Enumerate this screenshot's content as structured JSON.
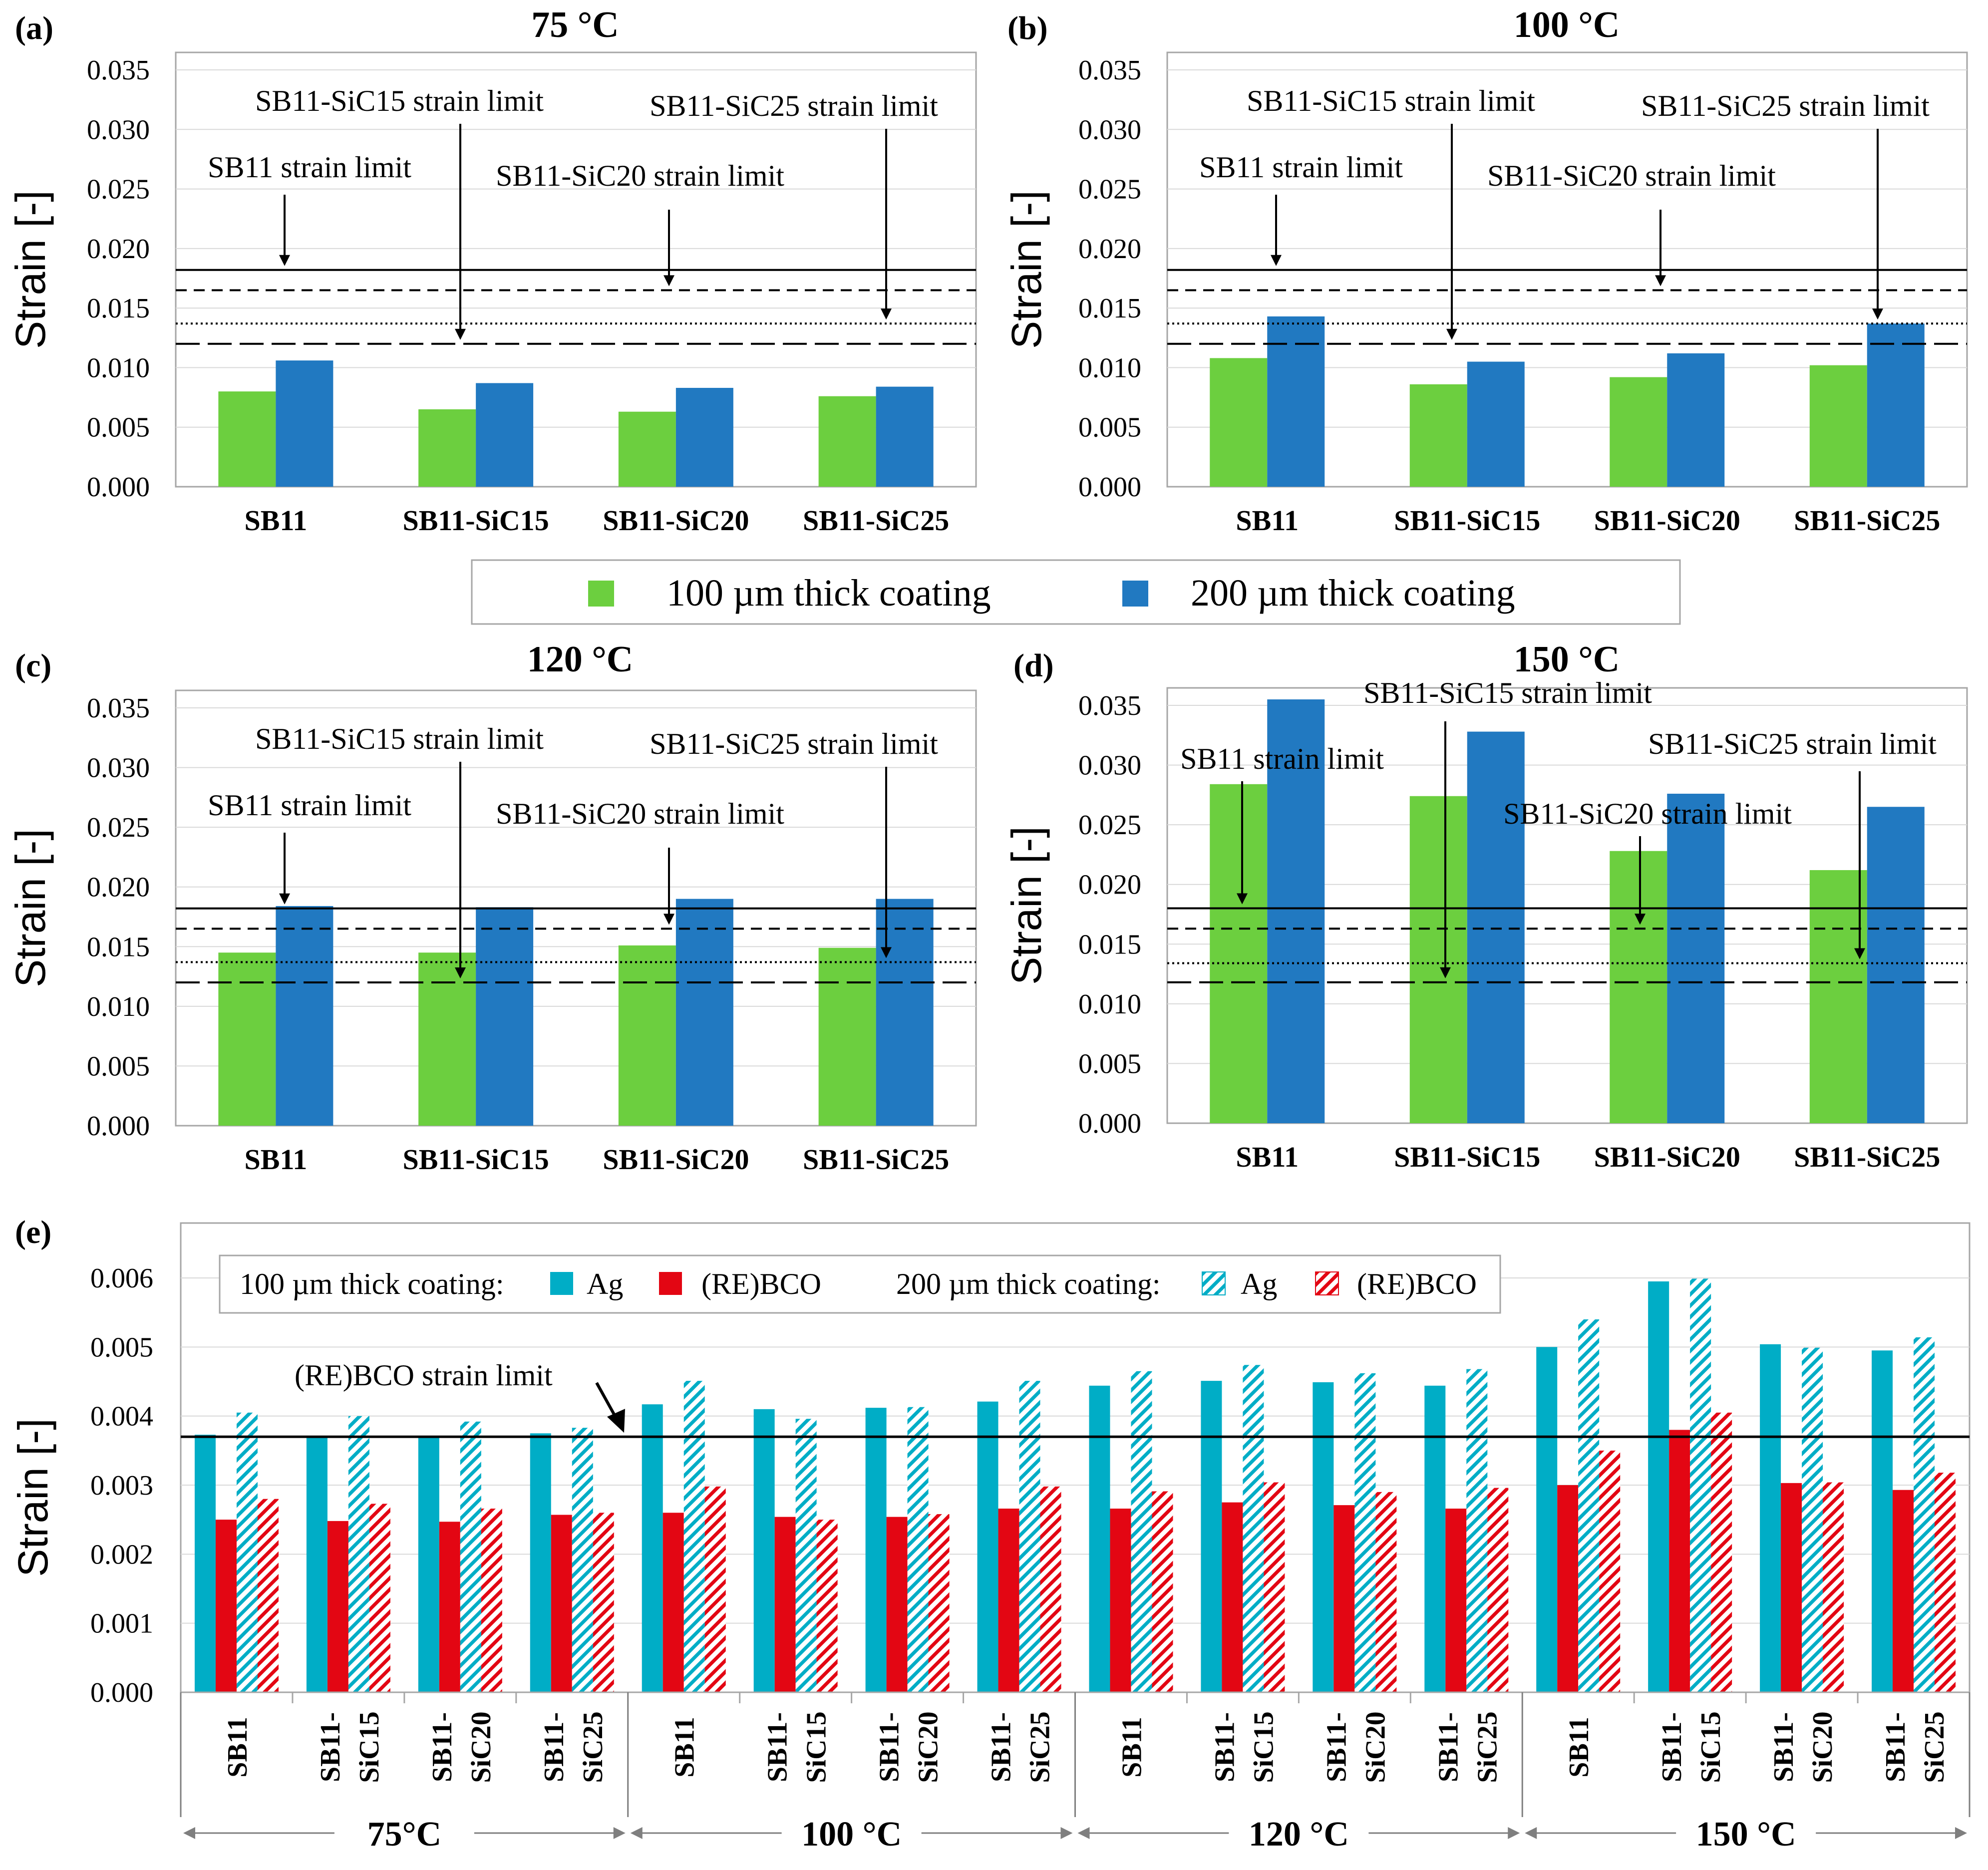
{
  "colors": {
    "green": "#6ccf3f",
    "blue": "#2179c1",
    "ag": "#00adc6",
    "rebco": "#e30613",
    "grid": "#d9d9d9",
    "frame": "#a6a6a6",
    "arrow": "#a6a6a6"
  },
  "legend_top": {
    "items": [
      {
        "label": "100 µm thick coating",
        "color_key": "green"
      },
      {
        "label": "200 µm thick coating",
        "color_key": "blue"
      }
    ]
  },
  "legend_e": {
    "group1": "100 µm thick coating:",
    "group2": "200 µm thick coating:",
    "ag": "Ag",
    "rebco": "(RE)BCO"
  },
  "chart_data": [
    {
      "type": "bar",
      "panel": "(a)",
      "title": "75 °C",
      "ylabel": "Strain [-]",
      "ylim": [
        0,
        0.035
      ],
      "yticks": [
        "0.000",
        "0.005",
        "0.010",
        "0.015",
        "0.020",
        "0.025",
        "0.030",
        "0.035"
      ],
      "categories": [
        "SB11",
        "SB11-SiC15",
        "SB11-SiC20",
        "SB11-SiC25"
      ],
      "series": [
        {
          "name": "100 µm thick coating",
          "values": [
            0.008,
            0.0065,
            0.0063,
            0.0076
          ]
        },
        {
          "name": "200 µm thick coating",
          "values": [
            0.0106,
            0.0087,
            0.0083,
            0.0084
          ]
        }
      ],
      "limits": [
        {
          "name": "SB11 strain limit",
          "value": 0.0182,
          "style": "solid"
        },
        {
          "name": "SB11-SiC20 strain limit",
          "value": 0.0165,
          "style": "dashed"
        },
        {
          "name": "SB11-SiC25 strain limit",
          "value": 0.0137,
          "style": "dotted"
        },
        {
          "name": "SB11-SiC15 strain limit",
          "value": 0.012,
          "style": "longdash"
        }
      ]
    },
    {
      "type": "bar",
      "panel": "(b)",
      "title": "100 °C",
      "ylabel": "Strain [-]",
      "ylim": [
        0,
        0.035
      ],
      "yticks": [
        "0.000",
        "0.005",
        "0.010",
        "0.015",
        "0.020",
        "0.025",
        "0.030",
        "0.035"
      ],
      "categories": [
        "SB11",
        "SB11-SiC15",
        "SB11-SiC20",
        "SB11-SiC25"
      ],
      "series": [
        {
          "name": "100 µm thick coating",
          "values": [
            0.0108,
            0.0086,
            0.0092,
            0.0102
          ]
        },
        {
          "name": "200 µm thick coating",
          "values": [
            0.0143,
            0.0105,
            0.0112,
            0.0137
          ]
        }
      ],
      "limits": [
        {
          "name": "SB11 strain limit",
          "value": 0.0182,
          "style": "solid"
        },
        {
          "name": "SB11-SiC20 strain limit",
          "value": 0.0165,
          "style": "dashed"
        },
        {
          "name": "SB11-SiC25 strain limit",
          "value": 0.0137,
          "style": "dotted"
        },
        {
          "name": "SB11-SiC15 strain limit",
          "value": 0.012,
          "style": "longdash"
        }
      ]
    },
    {
      "type": "bar",
      "panel": "(c)",
      "title": "120 °C",
      "ylabel": "Strain [-]",
      "ylim": [
        0,
        0.035
      ],
      "yticks": [
        "0.000",
        "0.005",
        "0.010",
        "0.015",
        "0.020",
        "0.025",
        "0.030",
        "0.035"
      ],
      "categories": [
        "SB11",
        "SB11-SiC15",
        "SB11-SiC20",
        "SB11-SiC25"
      ],
      "series": [
        {
          "name": "100 µm thick coating",
          "values": [
            0.0145,
            0.0145,
            0.0151,
            0.0149
          ]
        },
        {
          "name": "200 µm thick coating",
          "values": [
            0.0184,
            0.0183,
            0.019,
            0.019
          ]
        }
      ],
      "limits": [
        {
          "name": "SB11 strain limit",
          "value": 0.0182,
          "style": "solid"
        },
        {
          "name": "SB11-SiC20 strain limit",
          "value": 0.0165,
          "style": "dashed"
        },
        {
          "name": "SB11-SiC25 strain limit",
          "value": 0.0137,
          "style": "dotted"
        },
        {
          "name": "SB11-SiC15 strain limit",
          "value": 0.012,
          "style": "longdash"
        }
      ]
    },
    {
      "type": "bar",
      "panel": "(d)",
      "title": "150 °C",
      "ylabel": "Strain [-]",
      "ylim": [
        0,
        0.035
      ],
      "yticks": [
        "0.000",
        "0.005",
        "0.010",
        "0.015",
        "0.020",
        "0.025",
        "0.030",
        "0.035"
      ],
      "categories": [
        "SB11",
        "SB11-SiC15",
        "SB11-SiC20",
        "SB11-SiC25"
      ],
      "series": [
        {
          "name": "100 µm thick coating",
          "values": [
            0.0284,
            0.0274,
            0.0228,
            0.0212
          ]
        },
        {
          "name": "200 µm thick coating",
          "values": [
            0.0355,
            0.0328,
            0.0276,
            0.0265
          ]
        }
      ],
      "limits": [
        {
          "name": "SB11 strain limit",
          "value": 0.018,
          "style": "solid"
        },
        {
          "name": "SB11-SiC20 strain limit",
          "value": 0.0163,
          "style": "dashed"
        },
        {
          "name": "SB11-SiC25 strain limit",
          "value": 0.0134,
          "style": "dotted"
        },
        {
          "name": "SB11-SiC15 strain limit",
          "value": 0.0118,
          "style": "longdash"
        }
      ]
    },
    {
      "type": "bar",
      "panel": "(e)",
      "ylabel": "Strain [-]",
      "ylim": [
        0,
        0.006
      ],
      "yticks": [
        "0.000",
        "0.001",
        "0.002",
        "0.003",
        "0.004",
        "0.005",
        "0.006"
      ],
      "groups": [
        {
          "label": "75°C",
          "categories": [
            "SB11",
            "SB11-\nSiC15",
            "SB11-\nSiC20",
            "SB11-\nSiC25"
          ]
        },
        {
          "label": "100 °C",
          "categories": [
            "SB11",
            "SB11-\nSiC15",
            "SB11-\nSiC20",
            "SB11-\nSiC25"
          ]
        },
        {
          "label": "120 °C",
          "categories": [
            "SB11",
            "SB11-\nSiC15",
            "SB11-\nSiC20",
            "SB11-\nSiC25"
          ]
        },
        {
          "label": "150 °C",
          "categories": [
            "SB11",
            "SB11-\nSiC15",
            "SB11-\nSiC20",
            "SB11-\nSiC25"
          ]
        }
      ],
      "series": [
        {
          "name": "100 µm thick coating: Ag",
          "values": [
            0.00373,
            0.0037,
            0.0037,
            0.00375,
            0.00417,
            0.0041,
            0.00412,
            0.00421,
            0.00444,
            0.00451,
            0.00449,
            0.00444,
            0.005,
            0.00595,
            0.00504,
            0.00495
          ]
        },
        {
          "name": "100 µm thick coating: (RE)BCO",
          "values": [
            0.0025,
            0.00248,
            0.00247,
            0.00257,
            0.0026,
            0.00254,
            0.00254,
            0.00266,
            0.00266,
            0.00275,
            0.00271,
            0.00266,
            0.003,
            0.0038,
            0.00303,
            0.00293
          ]
        },
        {
          "name": "200 µm thick coating: Ag",
          "values": [
            0.00405,
            0.004,
            0.00392,
            0.00383,
            0.00451,
            0.00396,
            0.00413,
            0.00451,
            0.00465,
            0.00474,
            0.00462,
            0.00468,
            0.0054,
            0.00599,
            0.00499,
            0.00514
          ]
        },
        {
          "name": "200 µm thick coating: (RE)BCO",
          "values": [
            0.0028,
            0.00273,
            0.00266,
            0.0026,
            0.00298,
            0.0025,
            0.00258,
            0.00298,
            0.00291,
            0.00304,
            0.0029,
            0.00296,
            0.0035,
            0.00405,
            0.00304,
            0.00318
          ]
        }
      ],
      "limits": [
        {
          "name": "(RE)BCO strain limit",
          "value": 0.0037,
          "style": "solid"
        }
      ]
    }
  ]
}
